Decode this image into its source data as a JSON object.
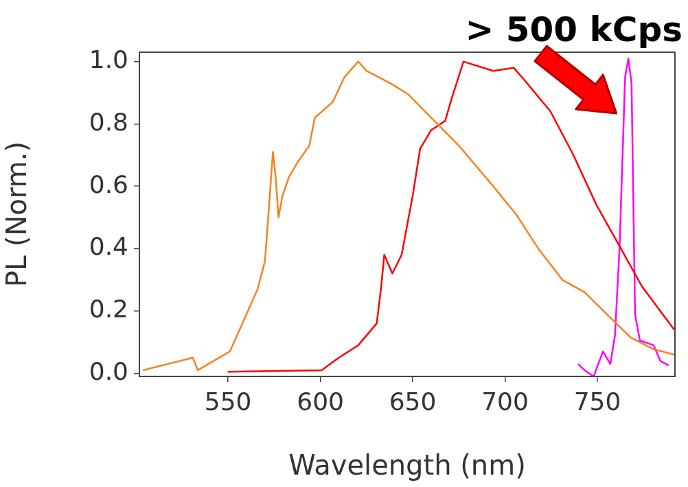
{
  "chart_data": {
    "type": "line",
    "xlabel": "Wavelength (nm)",
    "ylabel": "PL (Norm.)",
    "xlim": [
      502,
      792
    ],
    "ylim": [
      -0.01,
      1.03
    ],
    "xticks": [
      550,
      600,
      650,
      700,
      750
    ],
    "yticks": [
      {
        "value": 0,
        "label": "0.0"
      },
      0.2,
      0.4,
      0.6,
      0.8,
      {
        "value": 1,
        "label": "1.0"
      }
    ],
    "grid": false,
    "legend": false,
    "marker": "none",
    "line_style": "solid",
    "annotations": [
      {
        "text": "> 500 kCps",
        "x": 766.8,
        "y": 1.01
      }
    ],
    "series": [
      {
        "color": "#f6821f",
        "x": [
          503.9,
          531,
          533.6,
          551,
          557,
          566,
          570,
          572,
          574.3,
          575.8,
          577.3,
          579.5,
          583,
          588,
          594,
          597,
          606.7,
          613,
          620.5,
          625,
          638,
          647.6,
          660,
          675,
          693.6,
          706,
          718,
          731,
          743,
          755,
          768,
          780.5,
          791.6
        ],
        "values": [
          0.01,
          0.05,
          0.01,
          0.07,
          0.15,
          0.27,
          0.36,
          0.52,
          0.71,
          0.63,
          0.5,
          0.57,
          0.63,
          0.68,
          0.73,
          0.82,
          0.87,
          0.95,
          1.0,
          0.97,
          0.93,
          0.895,
          0.82,
          0.73,
          0.6,
          0.51,
          0.4,
          0.3,
          0.26,
          0.19,
          0.115,
          0.077,
          0.06
        ]
      },
      {
        "color": "#ff0000",
        "x": [
          549.8,
          600.7,
          610,
          620.5,
          630.5,
          632.8,
          634.6,
          639,
          644,
          650,
          654,
          660,
          667.6,
          671,
          677.5,
          693.6,
          704.7,
          712,
          724.6,
          737,
          749.5,
          761.8,
          774,
          791.6
        ],
        "values": [
          0.005,
          0.01,
          0.05,
          0.09,
          0.16,
          0.27,
          0.38,
          0.32,
          0.38,
          0.57,
          0.72,
          0.78,
          0.81,
          0.88,
          1.0,
          0.97,
          0.98,
          0.93,
          0.84,
          0.7,
          0.54,
          0.41,
          0.28,
          0.14
        ]
      },
      {
        "color": "#ff00ff",
        "x": [
          739.6,
          743,
          748,
          753,
          757,
          759.5,
          762,
          765,
          766.8,
          768.5,
          770.4,
          773,
          780.5,
          784,
          788.6
        ],
        "values": [
          0.03,
          0.01,
          -0.01,
          0.07,
          0.03,
          0.12,
          0.4,
          0.95,
          1.01,
          0.93,
          0.19,
          0.105,
          0.09,
          0.04,
          0.025
        ]
      }
    ]
  }
}
